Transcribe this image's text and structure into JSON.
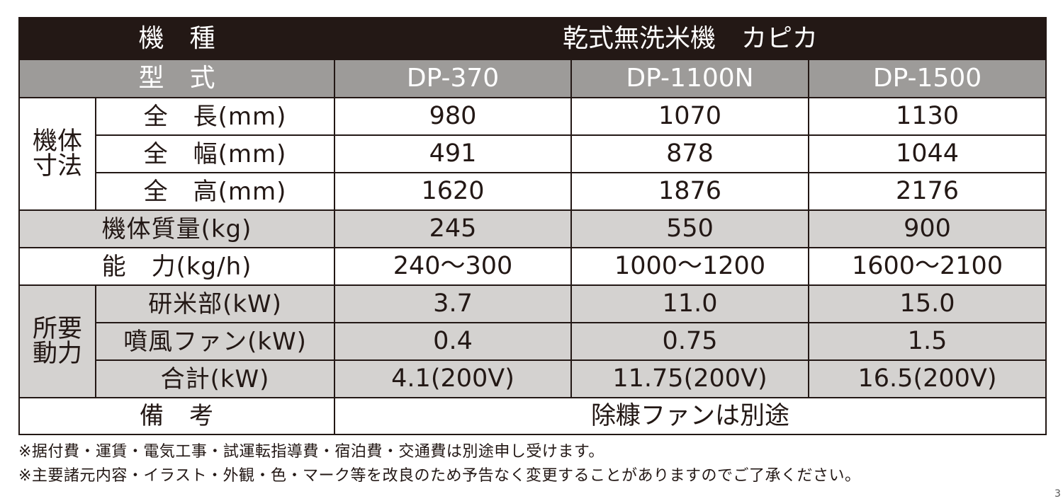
{
  "table": {
    "header": {
      "label": "機　種",
      "product": "乾式無洗米機　カピカ"
    },
    "model_row": {
      "label": "型　式",
      "models": [
        "DP-370",
        "DP-1100N",
        "DP-1500"
      ]
    },
    "dimensions": {
      "group": "機体寸法",
      "rows": [
        {
          "label": "全　長(mm)",
          "values": [
            "980",
            "1070",
            "1130"
          ]
        },
        {
          "label": "全　幅(mm)",
          "values": [
            "491",
            "878",
            "1044"
          ]
        },
        {
          "label": "全　高(mm)",
          "values": [
            "1620",
            "1876",
            "2176"
          ]
        }
      ]
    },
    "weight": {
      "label": "機体質量(kg)",
      "values": [
        "245",
        "550",
        "900"
      ]
    },
    "capacity": {
      "label": "能　力(kg/h)",
      "values": [
        "240〜300",
        "1000〜1200",
        "1600〜2100"
      ]
    },
    "power": {
      "group": "所要動力",
      "rows": [
        {
          "label": "研米部(kW)",
          "values": [
            "3.7",
            "11.0",
            "15.0"
          ]
        },
        {
          "label": "噴風ファン(kW)",
          "values": [
            "0.4",
            "0.75",
            "1.5"
          ]
        },
        {
          "label": "合計(kW)",
          "values": [
            "4.1(200V)",
            "11.75(200V)",
            "16.5(200V)"
          ]
        }
      ]
    },
    "remarks": {
      "label": "備　考",
      "value": "除糠ファンは別途"
    }
  },
  "notes": [
    "※据付費・運賃・電気工事・試運転指導費・宿泊費・交通費は別途申し受けます。",
    "※主要諸元内容・イラスト・外観・色・マーク等を改良のため予告なく変更することがありますのでご了承ください。"
  ],
  "page_number": "3",
  "colors": {
    "dark": "#231815",
    "model_gray": "#9d9b99",
    "light_gray": "#d4d2d0"
  }
}
